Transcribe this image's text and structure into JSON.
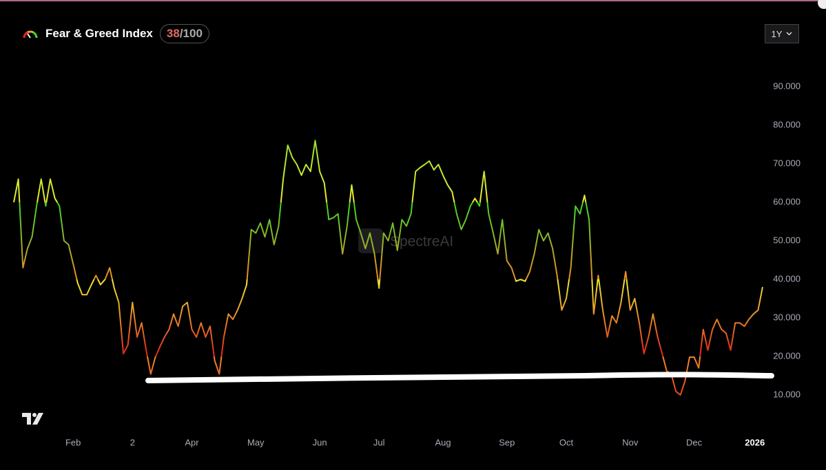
{
  "header": {
    "title": "Fear & Greed Index",
    "score": "38",
    "scale": "/100",
    "range": "1Y",
    "watermark": "SpectreAI"
  },
  "chart_data": {
    "type": "line",
    "categories": [
      null,
      null,
      null,
      null,
      null,
      null,
      null,
      null,
      null,
      null,
      null,
      null,
      null,
      "Feb",
      null,
      null,
      null,
      null,
      null,
      null,
      null,
      null,
      null,
      null,
      null,
      null,
      "2",
      null,
      null,
      null,
      null,
      null,
      null,
      null,
      null,
      null,
      null,
      null,
      null,
      "Apr",
      null,
      null,
      null,
      null,
      null,
      null,
      null,
      null,
      null,
      null,
      null,
      null,
      null,
      "May",
      null,
      null,
      null,
      null,
      null,
      null,
      null,
      null,
      null,
      null,
      null,
      null,
      null,
      "Jun",
      null,
      null,
      null,
      null,
      null,
      null,
      null,
      null,
      null,
      null,
      null,
      null,
      "Jul",
      null,
      null,
      null,
      null,
      null,
      null,
      null,
      null,
      null,
      null,
      null,
      null,
      null,
      "Aug",
      null,
      null,
      null,
      null,
      null,
      null,
      null,
      null,
      null,
      null,
      null,
      null,
      null,
      "Sep",
      null,
      null,
      null,
      null,
      null,
      null,
      null,
      null,
      null,
      null,
      null,
      null,
      "Oct",
      null,
      null,
      null,
      null,
      null,
      null,
      null,
      null,
      null,
      null,
      null,
      null,
      null,
      "Nov",
      null,
      null,
      null,
      null,
      null,
      null,
      null,
      null,
      null,
      null,
      null,
      null,
      null,
      "Dec",
      null,
      null,
      null,
      null,
      null,
      null,
      null,
      null,
      null,
      null,
      null,
      null,
      "2026",
      null,
      null
    ],
    "values": [
      60,
      66,
      43,
      48,
      51,
      59,
      66,
      59,
      66,
      61,
      59,
      50,
      49,
      44,
      39,
      36,
      36,
      38.6,
      41,
      38.6,
      40,
      43,
      37.7,
      34,
      20.7,
      23,
      34,
      25,
      28.7,
      21.6,
      15.4,
      19.8,
      22.5,
      25,
      27,
      31,
      27.8,
      33,
      34,
      27,
      25,
      28.7,
      25,
      27.8,
      18.9,
      15.4,
      25,
      31,
      29.6,
      32,
      35,
      38.6,
      52.9,
      52,
      54.6,
      51,
      55.5,
      49,
      53.8,
      66,
      74.8,
      71.6,
      69.8,
      67,
      69.8,
      68,
      76,
      68,
      65,
      55.5,
      56,
      57,
      46.6,
      53.8,
      64.5,
      55.5,
      52,
      48,
      52,
      46.6,
      37.7,
      52,
      50,
      54.6,
      47.5,
      55.5,
      53.8,
      57,
      68,
      69,
      69.8,
      70.7,
      68.4,
      69.8,
      67,
      64.5,
      62.7,
      57,
      52.9,
      55.5,
      59,
      61,
      59,
      68,
      57,
      52,
      46.6,
      55.5,
      44.8,
      43,
      39.5,
      40,
      39.5,
      42,
      46.6,
      52.9,
      50,
      52,
      48,
      41,
      32,
      35,
      43,
      59,
      57,
      61.8,
      55.5,
      31,
      41,
      32,
      25,
      30.5,
      28.7,
      34,
      42,
      32,
      35,
      28.7,
      20.7,
      25,
      31,
      25,
      20.7,
      16.2,
      15.4,
      10.9,
      10,
      13.6,
      19.8,
      19.8,
      17,
      27,
      21.6,
      27,
      29.6,
      27,
      26,
      21.6,
      28.7,
      28.7,
      27.8,
      29.6,
      31,
      32,
      38
    ],
    "ylim": [
      4.8,
      94.8
    ],
    "yticks": [
      {
        "value": 10,
        "label": "10.000"
      },
      {
        "value": 20,
        "label": "20.000"
      },
      {
        "value": 30,
        "label": "30.000"
      },
      {
        "value": 40,
        "label": "40.000"
      },
      {
        "value": 50,
        "label": "50.000"
      },
      {
        "value": 60,
        "label": "60.000"
      },
      {
        "value": 70,
        "label": "70.000"
      },
      {
        "value": 80,
        "label": "80.000"
      },
      {
        "value": 90,
        "label": "90.000"
      }
    ],
    "grid": false,
    "color_scale": [
      {
        "below": 20,
        "color": "#e3221c"
      },
      {
        "below": 40,
        "color": "#f28a26"
      },
      {
        "below": 60,
        "color": "#ecec2e"
      },
      {
        "below": 101,
        "color": "#36d92a"
      }
    ]
  }
}
